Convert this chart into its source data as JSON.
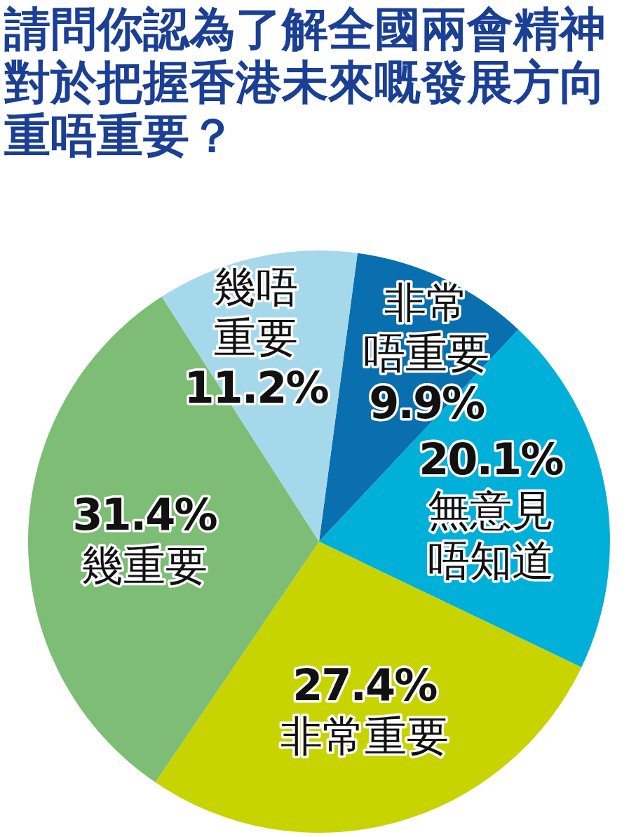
{
  "chart_data": {
    "type": "pie",
    "title": "請問你認為了解全國兩會精神對於把握香港未來嘅發展方向重唔重要？",
    "categories": [
      "非常唔重要",
      "無意見唔知道",
      "非常重要",
      "幾重要",
      "幾唔重要"
    ],
    "values": [
      9.9,
      20.1,
      27.4,
      31.4,
      11.2
    ],
    "value_labels": [
      "9.9%",
      "20.1%",
      "27.4%",
      "31.4%",
      "11.2%"
    ],
    "colors": [
      "#0a6fae",
      "#00b0d8",
      "#c8d400",
      "#7dbd75",
      "#a6d8ec"
    ]
  }
}
